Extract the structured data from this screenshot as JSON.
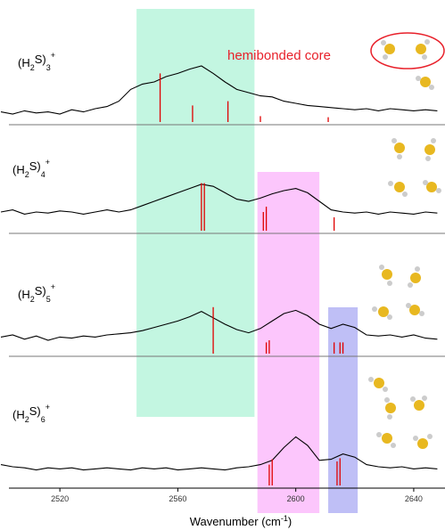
{
  "chart_data": {
    "type": "stacked-spectra",
    "xlabel": [
      "Wavenumber (cm",
      "-1",
      ")"
    ],
    "xlim": [
      2500,
      2650
    ],
    "xticks": [
      2520,
      2560,
      2600,
      2640
    ],
    "trace_color": "#000000",
    "stick_color": "#e00000",
    "annotation": {
      "text": "hemibonded core",
      "color": "#e8202a"
    },
    "bands": [
      {
        "xlim": [
          2546,
          2586
        ],
        "color": "#b8f5dc"
      },
      {
        "xlim": [
          2587,
          2608
        ],
        "color": "#fcbcfc"
      },
      {
        "xlim": [
          2611,
          2621
        ],
        "color": "#b4b4f4"
      }
    ],
    "x": [
      2500,
      2504,
      2508,
      2512,
      2516,
      2520,
      2524,
      2528,
      2532,
      2536,
      2540,
      2544,
      2548,
      2552,
      2556,
      2560,
      2564,
      2568,
      2572,
      2576,
      2580,
      2584,
      2588,
      2592,
      2596,
      2600,
      2604,
      2608,
      2612,
      2616,
      2620,
      2624,
      2628,
      2632,
      2636,
      2640,
      2644,
      2648
    ],
    "panels": [
      {
        "formula": [
          "(H",
          "2",
          "S)",
          "3",
          "+"
        ],
        "values": [
          0.12,
          0.1,
          0.13,
          0.11,
          0.12,
          0.1,
          0.14,
          0.12,
          0.15,
          0.17,
          0.22,
          0.33,
          0.38,
          0.4,
          0.45,
          0.48,
          0.52,
          0.55,
          0.48,
          0.4,
          0.33,
          0.3,
          0.27,
          0.26,
          0.22,
          0.2,
          0.18,
          0.17,
          0.16,
          0.15,
          0.14,
          0.15,
          0.13,
          0.15,
          0.14,
          0.13,
          0.14,
          0.13
        ],
        "sticks": {
          "x": [
            2554,
            2565,
            2577,
            2588,
            2611
          ],
          "values": [
            0.48,
            0.18,
            0.22,
            0.08,
            0.07
          ]
        }
      },
      {
        "formula": [
          "(H",
          "2",
          "S)",
          "4",
          "+"
        ],
        "values": [
          0.2,
          0.22,
          0.18,
          0.2,
          0.19,
          0.21,
          0.2,
          0.18,
          0.2,
          0.22,
          0.2,
          0.22,
          0.26,
          0.3,
          0.34,
          0.38,
          0.42,
          0.46,
          0.44,
          0.38,
          0.32,
          0.3,
          0.33,
          0.37,
          0.4,
          0.42,
          0.38,
          0.3,
          0.22,
          0.2,
          0.19,
          0.2,
          0.18,
          0.2,
          0.19,
          0.18,
          0.2,
          0.19
        ],
        "sticks": {
          "x": [
            2568,
            2569,
            2589,
            2590,
            2613
          ],
          "values": [
            0.47,
            0.47,
            0.2,
            0.25,
            0.15
          ]
        }
      },
      {
        "formula": [
          "(H",
          "2",
          "S)",
          "5",
          "+"
        ],
        "values": [
          0.18,
          0.2,
          0.16,
          0.19,
          0.15,
          0.18,
          0.17,
          0.19,
          0.18,
          0.2,
          0.21,
          0.22,
          0.24,
          0.27,
          0.3,
          0.33,
          0.37,
          0.42,
          0.36,
          0.3,
          0.25,
          0.22,
          0.26,
          0.33,
          0.4,
          0.43,
          0.38,
          0.3,
          0.26,
          0.3,
          0.27,
          0.2,
          0.19,
          0.2,
          0.18,
          0.2,
          0.17,
          0.16
        ],
        "sticks": {
          "x": [
            2572,
            2590,
            2591,
            2613,
            2615,
            2616
          ],
          "values": [
            0.46,
            0.13,
            0.15,
            0.13,
            0.13,
            0.13
          ]
        }
      },
      {
        "formula": [
          "(H",
          "2",
          "S)",
          "6",
          "+"
        ],
        "values": [
          0.22,
          0.2,
          0.19,
          0.17,
          0.19,
          0.18,
          0.19,
          0.17,
          0.18,
          0.19,
          0.18,
          0.17,
          0.19,
          0.18,
          0.19,
          0.17,
          0.18,
          0.19,
          0.18,
          0.17,
          0.19,
          0.2,
          0.22,
          0.26,
          0.38,
          0.48,
          0.4,
          0.26,
          0.27,
          0.32,
          0.29,
          0.22,
          0.2,
          0.19,
          0.2,
          0.18,
          0.19,
          0.18
        ],
        "sticks": {
          "x": [
            2591,
            2592,
            2614,
            2615
          ],
          "values": [
            0.22,
            0.27,
            0.25,
            0.28
          ]
        }
      }
    ]
  }
}
